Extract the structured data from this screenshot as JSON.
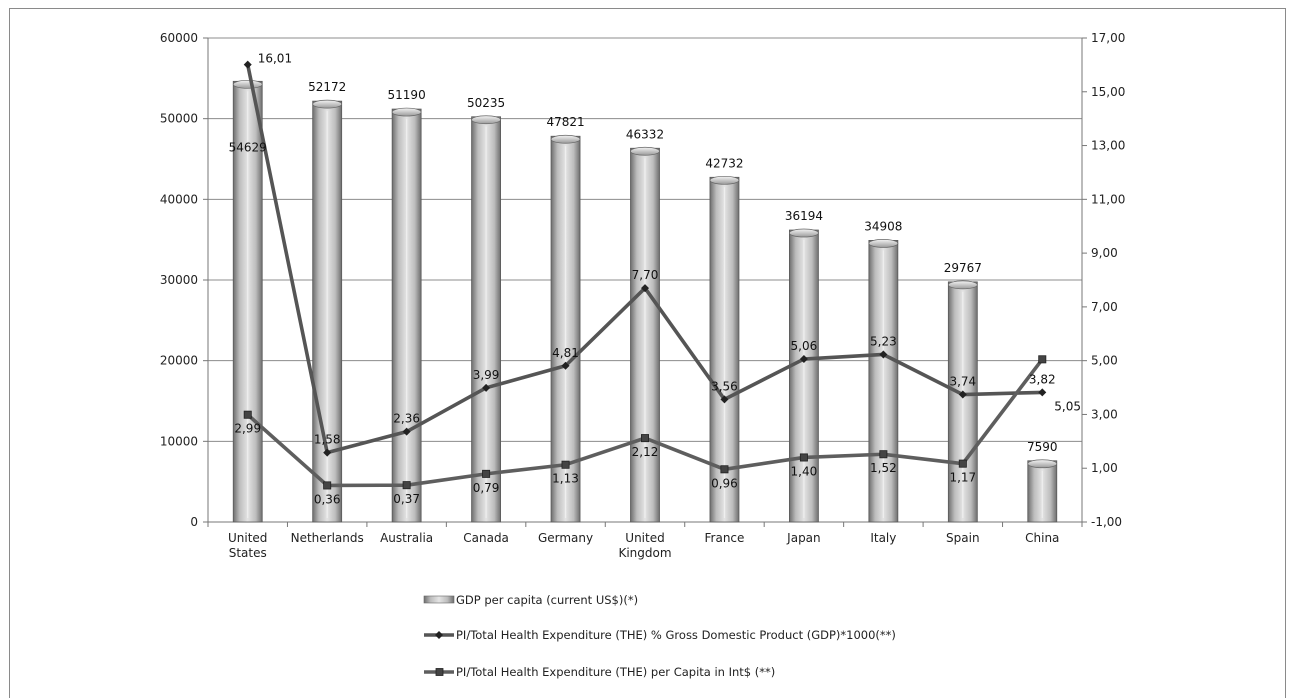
{
  "chart_data": {
    "type": "bar",
    "categories": [
      [
        "United",
        "States"
      ],
      [
        "Netherlands"
      ],
      [
        "Australia"
      ],
      [
        "Canada"
      ],
      [
        "Germany"
      ],
      [
        "United",
        "Kingdom"
      ],
      [
        "France"
      ],
      [
        "Japan"
      ],
      [
        "Italy"
      ],
      [
        "Spain"
      ],
      [
        "China"
      ]
    ],
    "left_axis": {
      "min": 0,
      "max": 60000,
      "step": 10000,
      "ticks": [
        "0",
        "10000",
        "20000",
        "30000",
        "40000",
        "50000",
        "60000"
      ]
    },
    "right_axis": {
      "min": -1,
      "max": 17,
      "step": 2,
      "ticks": [
        "-1,00",
        "1,00",
        "3,00",
        "5,00",
        "7,00",
        "9,00",
        "11,00",
        "13,00",
        "15,00",
        "17,00"
      ]
    },
    "grid": "horizontal",
    "legend_position": "bottom",
    "series": [
      {
        "name": "GDP per capita (current US$)(*)",
        "kind": "bar",
        "axis": "left",
        "color": "#a9a9a9",
        "values": [
          54629,
          52172,
          51190,
          50235,
          47821,
          46332,
          42732,
          36194,
          34908,
          29767,
          7590
        ],
        "labels": [
          "54629",
          "52172",
          "51190",
          "50235",
          "47821",
          "46332",
          "42732",
          "36194",
          "34908",
          "29767",
          "7590"
        ]
      },
      {
        "name": "PI/Total Health Expenditure (THE) % Gross Domestic Product (GDP)*1000(**)",
        "kind": "line",
        "marker": "diamond",
        "axis": "right",
        "color": "#555555",
        "values": [
          16.01,
          1.58,
          2.36,
          3.99,
          4.81,
          7.7,
          3.56,
          5.06,
          5.23,
          3.74,
          3.82
        ],
        "labels": [
          "16,01",
          "1,58",
          "2,36",
          "3,99",
          "4,81",
          "7,70",
          "3,56",
          "5,06",
          "5,23",
          "3,74",
          "3,82"
        ]
      },
      {
        "name": "PI/Total Health Expenditure (THE) per Capita in Int$ (**)",
        "kind": "line",
        "marker": "square",
        "axis": "right",
        "color": "#5e5e5e",
        "values": [
          2.99,
          0.36,
          0.37,
          0.79,
          1.13,
          2.12,
          0.96,
          1.4,
          1.52,
          1.17,
          5.05
        ],
        "labels": [
          "2,99",
          "0,36",
          "0,37",
          "0,79",
          "1,13",
          "2,12",
          "0,96",
          "1,40",
          "1,52",
          "1,17",
          "5,05"
        ]
      }
    ]
  }
}
